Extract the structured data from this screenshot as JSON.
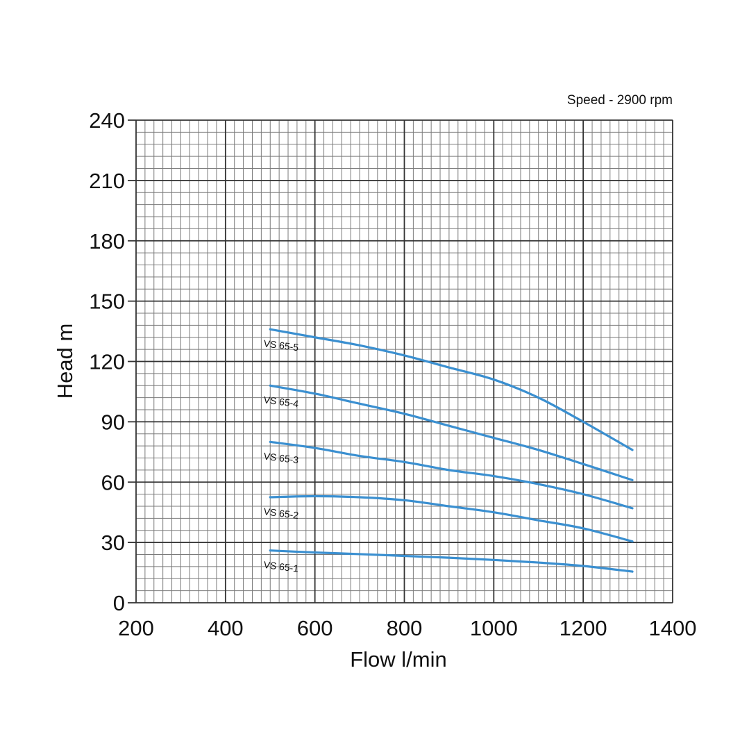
{
  "chart_data": {
    "type": "line",
    "title": "",
    "annotation": "Speed - 2900 rpm",
    "xlabel": "Flow l/min",
    "ylabel": "Head m",
    "xlim": [
      200,
      1400
    ],
    "ylim": [
      0,
      240
    ],
    "x_ticks": [
      "200",
      "400",
      "600",
      "800",
      "1000",
      "1200",
      "1400"
    ],
    "y_ticks": [
      "0",
      "30",
      "60",
      "90",
      "120",
      "150",
      "180",
      "210",
      "240"
    ],
    "grid": true,
    "colors": {
      "curve": "#3a8fd0",
      "grid_major": "#333333",
      "grid_minor": "#7a7a7a",
      "text": "#111111"
    },
    "series": [
      {
        "name": "VS 65-5",
        "points": [
          [
            500,
            136
          ],
          [
            600,
            132
          ],
          [
            700,
            128
          ],
          [
            800,
            123
          ],
          [
            900,
            117
          ],
          [
            1000,
            111
          ],
          [
            1100,
            102
          ],
          [
            1200,
            90
          ],
          [
            1310,
            76
          ]
        ]
      },
      {
        "name": "VS 65-4",
        "points": [
          [
            500,
            108
          ],
          [
            600,
            104
          ],
          [
            700,
            99
          ],
          [
            800,
            94
          ],
          [
            900,
            88
          ],
          [
            1000,
            82
          ],
          [
            1100,
            76
          ],
          [
            1200,
            69
          ],
          [
            1310,
            61
          ]
        ]
      },
      {
        "name": "VS 65-3",
        "points": [
          [
            500,
            80
          ],
          [
            600,
            77
          ],
          [
            700,
            73
          ],
          [
            800,
            70
          ],
          [
            900,
            66
          ],
          [
            1000,
            63
          ],
          [
            1100,
            59
          ],
          [
            1200,
            54
          ],
          [
            1310,
            47
          ]
        ]
      },
      {
        "name": "VS 65-2",
        "points": [
          [
            500,
            52.5
          ],
          [
            600,
            53
          ],
          [
            700,
            52.5
          ],
          [
            800,
            51
          ],
          [
            900,
            48
          ],
          [
            1000,
            45
          ],
          [
            1100,
            41
          ],
          [
            1200,
            37
          ],
          [
            1310,
            30.5
          ]
        ]
      },
      {
        "name": "VS 65-1",
        "points": [
          [
            500,
            26
          ],
          [
            600,
            25
          ],
          [
            700,
            24.2
          ],
          [
            800,
            23.3
          ],
          [
            900,
            22.4
          ],
          [
            1000,
            21.3
          ],
          [
            1100,
            20
          ],
          [
            1200,
            18.3
          ],
          [
            1310,
            15.5
          ]
        ]
      }
    ]
  }
}
